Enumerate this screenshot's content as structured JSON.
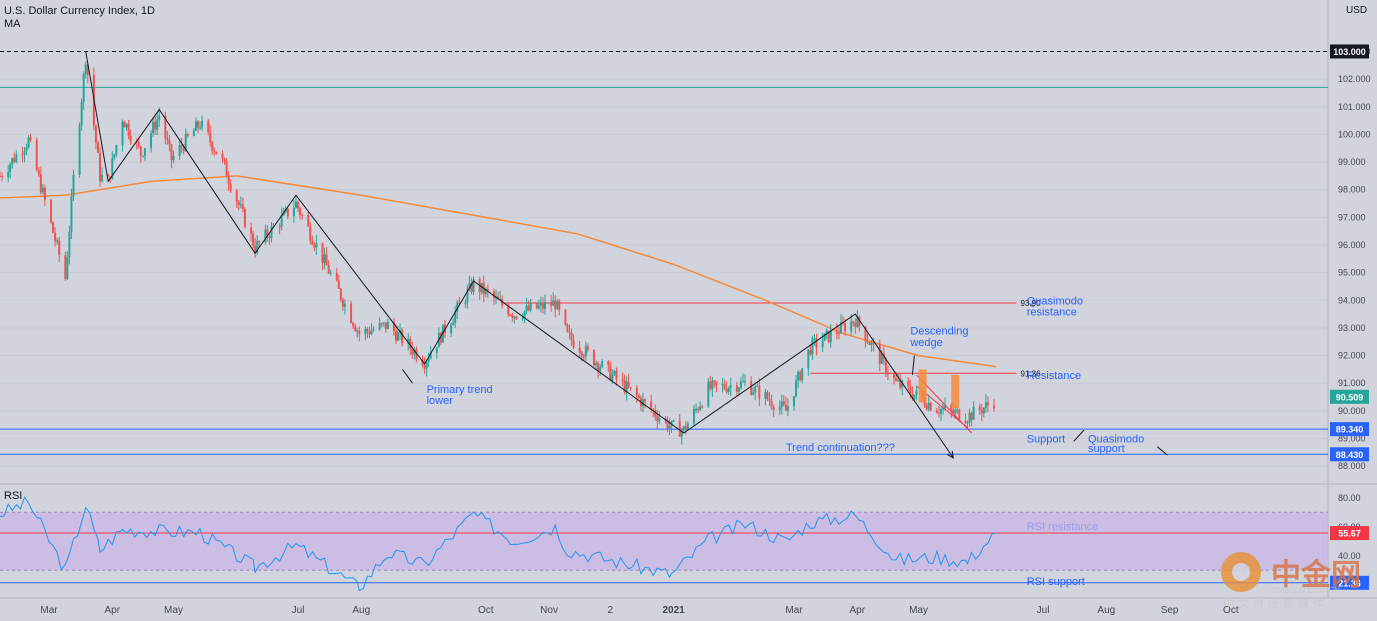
{
  "header": {
    "title": "U.S. Dollar Currency Index, 1D",
    "indicator": "MA",
    "currency": "USD",
    "rsi_label": "RSI"
  },
  "colors": {
    "background": "#d1d4dc",
    "candle_up": "#26a69a",
    "candle_down": "#ef5350",
    "ma": "#f7893b",
    "trend_line": "#131722",
    "level_red": "#f23645",
    "level_blue": "#2962ff",
    "annotation": "#2962ff",
    "rsi_line": "#2196f3",
    "rsi_band": "#c9b3e6"
  },
  "chart_data": [
    {
      "type": "candlestick",
      "title": "U.S. Dollar Currency Index, 1D",
      "y_axis": {
        "range": [
          87.5,
          104.5
        ],
        "ticks": [
          "103.000",
          "102.000",
          "101.000",
          "100.000",
          "99.000",
          "98.000",
          "97.000",
          "96.000",
          "95.000",
          "94.000",
          "93.000",
          "92.000",
          "91.000",
          "90.000",
          "89.000",
          "88.000"
        ]
      },
      "x_axis": {
        "ticks": [
          {
            "label": "Mar",
            "date": "2020-03-01"
          },
          {
            "label": "Apr",
            "date": "2020-04-01"
          },
          {
            "label": "May",
            "date": "2020-05-01"
          },
          {
            "label": "Jul",
            "date": "2020-07-01"
          },
          {
            "label": "Aug",
            "date": "2020-08-01"
          },
          {
            "label": "Oct",
            "date": "2020-10-01"
          },
          {
            "label": "Nov",
            "date": "2020-11-01"
          },
          {
            "label": "2",
            "date": "2020-12-01"
          },
          {
            "label": "2021",
            "date": "2021-01-01"
          },
          {
            "label": "Mar",
            "date": "2021-03-01"
          },
          {
            "label": "Apr",
            "date": "2021-04-01"
          },
          {
            "label": "May",
            "date": "2021-05-01"
          },
          {
            "label": "Jul",
            "date": "2021-07-01"
          },
          {
            "label": "Aug",
            "date": "2021-08-01"
          },
          {
            "label": "Sep",
            "date": "2021-09-01"
          },
          {
            "label": "Oct",
            "date": "2021-10-01"
          }
        ]
      },
      "price_path": [
        [
          "2020-02-06",
          98.5
        ],
        [
          "2020-02-20",
          99.8
        ],
        [
          "2020-03-09",
          94.8
        ],
        [
          "2020-03-13",
          98.4
        ],
        [
          "2020-03-19",
          102.8
        ],
        [
          "2020-03-26",
          98.5
        ],
        [
          "2020-03-30",
          98.3
        ],
        [
          "2020-04-06",
          100.6
        ],
        [
          "2020-04-15",
          99.3
        ],
        [
          "2020-04-24",
          100.7
        ],
        [
          "2020-04-30",
          99.1
        ],
        [
          "2020-05-14",
          100.4
        ],
        [
          "2020-05-25",
          99.0
        ],
        [
          "2020-06-10",
          95.9
        ],
        [
          "2020-06-30",
          97.5
        ],
        [
          "2020-07-31",
          92.8
        ],
        [
          "2020-08-14",
          93.1
        ],
        [
          "2020-09-01",
          91.8
        ],
        [
          "2020-09-25",
          94.6
        ],
        [
          "2020-10-15",
          93.5
        ],
        [
          "2020-11-04",
          93.9
        ],
        [
          "2020-11-10",
          92.7
        ],
        [
          "2020-12-31",
          89.4
        ],
        [
          "2021-01-06",
          89.3
        ],
        [
          "2021-01-18",
          90.8
        ],
        [
          "2021-02-05",
          91.0
        ],
        [
          "2021-02-25",
          90.0
        ],
        [
          "2021-03-09",
          92.3
        ],
        [
          "2021-03-31",
          93.3
        ],
        [
          "2021-04-20",
          91.0
        ],
        [
          "2021-05-10",
          90.1
        ],
        [
          "2021-05-25",
          89.8
        ],
        [
          "2021-06-04",
          90.2
        ],
        [
          "2021-06-08",
          90.4
        ]
      ],
      "series": [
        {
          "name": "MA",
          "type": "line",
          "points": [
            [
              "2020-02-06",
              97.7
            ],
            [
              "2020-03-09",
              97.8
            ],
            [
              "2020-04-20",
              98.3
            ],
            [
              "2020-06-01",
              98.5
            ],
            [
              "2020-08-01",
              97.8
            ],
            [
              "2020-10-01",
              97.0
            ],
            [
              "2020-11-15",
              96.4
            ],
            [
              "2021-01-01",
              95.3
            ],
            [
              "2021-02-15",
              94.0
            ],
            [
              "2021-03-25",
              92.8
            ],
            [
              "2021-05-01",
              92.0
            ],
            [
              "2021-06-08",
              91.6
            ]
          ]
        },
        {
          "name": "RSI",
          "type": "line",
          "y_axis": {
            "ticks": [
              "80.00",
              "60.00",
              "40.00",
              "20.00"
            ],
            "range": [
              15,
              84
            ]
          },
          "band": [
            30,
            70
          ],
          "points": [
            [
              "2020-02-06",
              69
            ],
            [
              "2020-02-20",
              77
            ],
            [
              "2020-03-09",
              30
            ],
            [
              "2020-03-19",
              75
            ],
            [
              "2020-03-26",
              44
            ],
            [
              "2020-04-06",
              58
            ],
            [
              "2020-04-24",
              57
            ],
            [
              "2020-05-14",
              56
            ],
            [
              "2020-06-10",
              32
            ],
            [
              "2020-06-30",
              47
            ],
            [
              "2020-07-31",
              18
            ],
            [
              "2020-08-14",
              42
            ],
            [
              "2020-09-01",
              34
            ],
            [
              "2020-09-25",
              69
            ],
            [
              "2020-10-15",
              50
            ],
            [
              "2020-11-04",
              60
            ],
            [
              "2020-11-10",
              44
            ],
            [
              "2020-12-31",
              27
            ],
            [
              "2021-01-18",
              51
            ],
            [
              "2021-02-05",
              62
            ],
            [
              "2021-02-25",
              50
            ],
            [
              "2021-03-09",
              63
            ],
            [
              "2021-03-31",
              68
            ],
            [
              "2021-04-20",
              37
            ],
            [
              "2021-05-10",
              39
            ],
            [
              "2021-05-25",
              36
            ],
            [
              "2021-06-08",
              55.67
            ]
          ]
        }
      ],
      "lines": [
        {
          "type": "horizontal",
          "value": 103.0,
          "label": "103.000",
          "style": "dashed",
          "color": "#131722"
        },
        {
          "type": "horizontal",
          "value": 101.7,
          "style": "solid",
          "color": "#26a69a"
        },
        {
          "type": "horizontal",
          "value": 89.34,
          "label": "89.340",
          "color": "#2962ff"
        },
        {
          "type": "horizontal",
          "value": 88.43,
          "label": "88.430",
          "color": "#2962ff"
        },
        {
          "type": "segment",
          "from": [
            "2020-10-10",
            93.9
          ],
          "to": [
            "2021-06-18",
            93.9
          ],
          "label": "93.90",
          "color": "#f23645"
        },
        {
          "type": "segment",
          "from": [
            "2021-03-09",
            91.36
          ],
          "to": [
            "2021-06-18",
            91.36
          ],
          "label": "91.36",
          "color": "#f23645"
        }
      ],
      "zigzag": [
        [
          "2020-03-19",
          103.0
        ],
        [
          "2020-03-30",
          98.3
        ],
        [
          "2020-04-24",
          100.9
        ],
        [
          "2020-06-10",
          95.7
        ],
        [
          "2020-06-30",
          97.8
        ],
        [
          "2020-09-01",
          91.7
        ],
        [
          "2020-09-25",
          94.7
        ],
        [
          "2021-01-06",
          89.2
        ],
        [
          "2021-03-31",
          93.5
        ],
        [
          "2021-05-18",
          88.3
        ]
      ],
      "wedge": [
        {
          "from": [
            "2021-04-30",
            91.3
          ],
          "to": [
            "2021-05-27",
            89.2
          ]
        },
        {
          "from": [
            "2021-04-30",
            90.9
          ],
          "to": [
            "2021-05-25",
            89.4
          ]
        }
      ],
      "bars": [
        {
          "date": "2021-05-03",
          "from": 91.5,
          "to": 90.3
        },
        {
          "date": "2021-05-19",
          "from": 91.3,
          "to": 90.1
        }
      ],
      "annotations": [
        {
          "text": "Primary trend",
          "date": "2020-09-02",
          "value": 90.8
        },
        {
          "text": "lower",
          "date": "2020-09-02",
          "value": 90.4
        },
        {
          "text": "Descending",
          "date": "2021-04-27",
          "value": 92.9
        },
        {
          "text": "wedge",
          "date": "2021-04-27",
          "value": 92.5
        },
        {
          "text": "Trend continuation???",
          "date": "2021-02-25",
          "value": 88.7
        },
        {
          "text": "Quasimodo",
          "date": "2021-06-23",
          "value": 94.0
        },
        {
          "text": "resistance",
          "date": "2021-06-23",
          "value": 93.6
        },
        {
          "text": "Resistance",
          "date": "2021-06-23",
          "value": 91.3
        },
        {
          "text": "Support",
          "date": "2021-06-23",
          "value": 89.0
        },
        {
          "text": "Quasimodo",
          "date": "2021-07-23",
          "value": 89.0
        },
        {
          "text": "support",
          "date": "2021-07-23",
          "value": 88.65
        },
        {
          "text": "RSI resistance",
          "date": "2021-06-23",
          "value": 60.5,
          "pane": "rsi"
        },
        {
          "text": "RSI support",
          "date": "2021-06-23",
          "value": 22.5,
          "pane": "rsi"
        }
      ],
      "price_labels": [
        {
          "text": "103.000",
          "value": 103.0,
          "bg": "#131722"
        },
        {
          "text": "90.509",
          "value": 90.509,
          "bg": "#26a69a"
        },
        {
          "text": "89.340",
          "value": 89.34,
          "bg": "#2962ff"
        },
        {
          "text": "88.430",
          "value": 88.43,
          "bg": "#2962ff"
        },
        {
          "text": "55.67",
          "value": 55.67,
          "bg": "#f23645",
          "pane": "rsi"
        },
        {
          "text": "21.36",
          "value": 21.36,
          "bg": "#2962ff",
          "pane": "rsi"
        }
      ]
    }
  ],
  "watermark": {
    "name": "中金网",
    "domain": "CNGOLD.COM.CN",
    "tagline": "中文财经新媒体"
  }
}
